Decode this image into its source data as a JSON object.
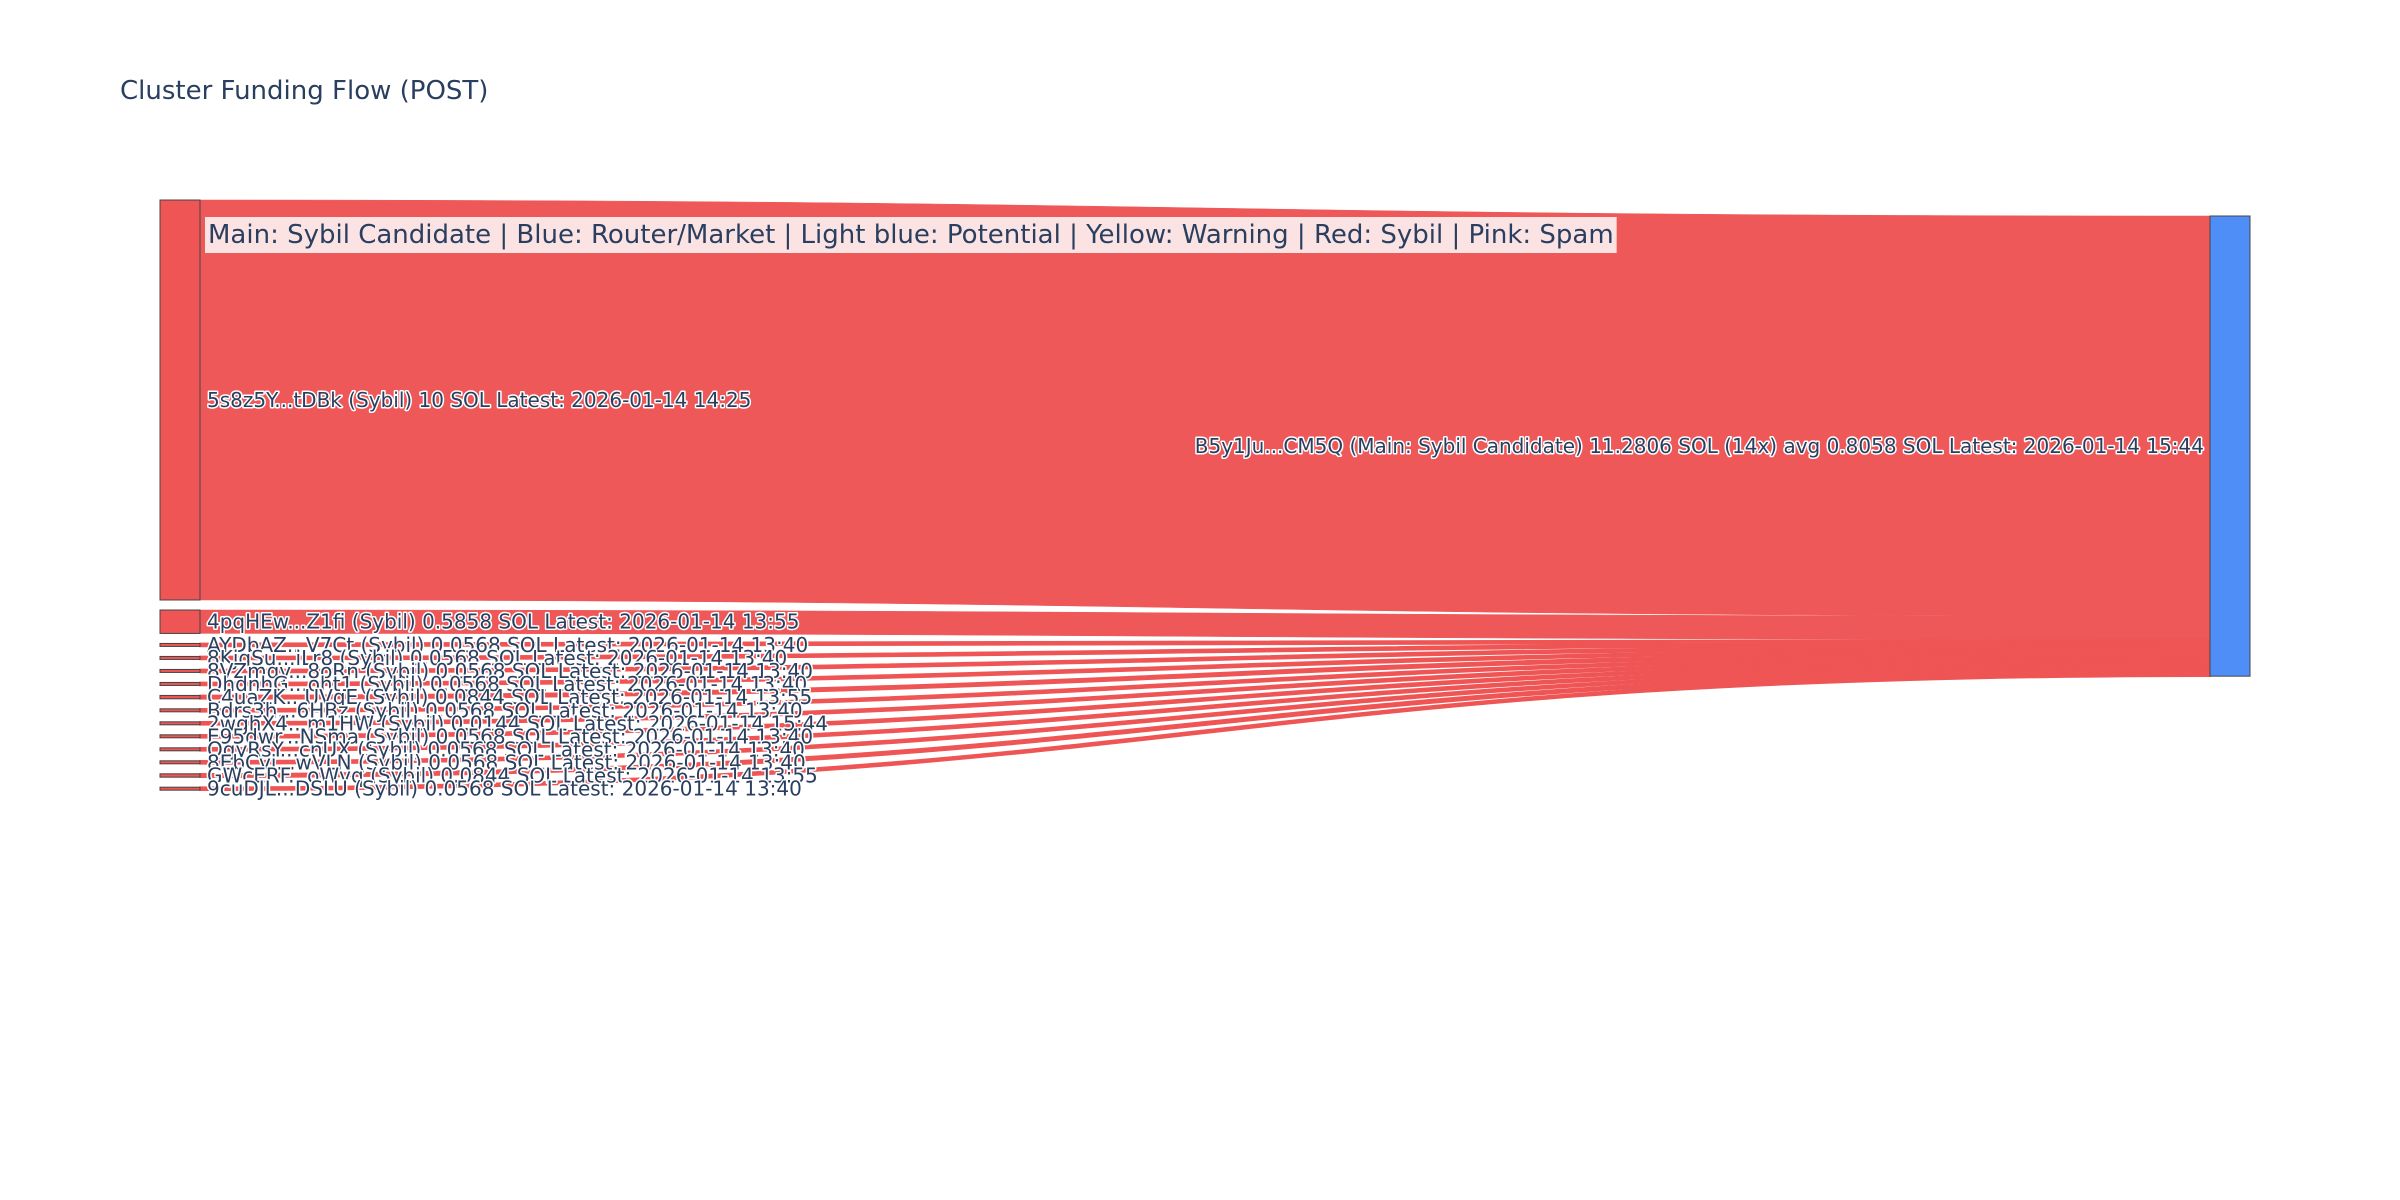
{
  "colors": {
    "sybil": "#EF5555",
    "main": "#4F8EF7",
    "background": "#ffffff",
    "text": "#2a3f5f",
    "legend_bg": "#fbe3e3",
    "node_border": "#444444"
  },
  "chart_data": {
    "type": "sankey",
    "title": "Cluster Funding Flow (POST)",
    "legend_note": "Main: Sybil Candidate  |  Blue: Router/Market | Light blue: Potential | Yellow: Warning | Red: Sybil | Pink: Spam",
    "target": {
      "label": "B5y1Ju...CM5Q (Main: Sybil Candidate) 11.2806 SOL (14x) avg 0.8058 SOL Latest: 2026-01-14 15:44",
      "value": 11.2806,
      "category": "main"
    },
    "sources": [
      {
        "label": "5s8z5Y...tDBk (Sybil) 10 SOL Latest: 2026-01-14 14:25",
        "value": 10,
        "category": "sybil"
      },
      {
        "label": "4pqHEw...Z1fi (Sybil) 0.5858 SOL Latest: 2026-01-14 13:55",
        "value": 0.5858,
        "category": "sybil"
      },
      {
        "label": "AYDbAZ...V7Ct (Sybil) 0.0568 SOL Latest: 2026-01-14 13:40",
        "value": 0.0568,
        "category": "sybil"
      },
      {
        "label": "8KjqSu...iLr8 (Sybil) 0.0568 SOL Latest: 2026-01-14 13:40",
        "value": 0.0568,
        "category": "sybil"
      },
      {
        "label": "8VZmqy...8oRn (Sybil) 0.0568 SOL Latest: 2026-01-14 13:40",
        "value": 0.0568,
        "category": "sybil"
      },
      {
        "label": "DhdnhG...oht1 (Sybil) 0.0568 SOL Latest: 2026-01-14 13:40",
        "value": 0.0568,
        "category": "sybil"
      },
      {
        "label": "C4uaZK...UVqE (Sybil) 0.0844 SOL Latest: 2026-01-14 13:55",
        "value": 0.0844,
        "category": "sybil"
      },
      {
        "label": "Bdrs3h...6HBz (Sybil) 0.0568 SOL Latest: 2026-01-14 13:40",
        "value": 0.0568,
        "category": "sybil"
      },
      {
        "label": "2wghX4...m1HW (Sybil) 0.0144 SOL Latest: 2026-01-14 15:44",
        "value": 0.0144,
        "category": "sybil"
      },
      {
        "label": "E95dwr...NSma (Sybil) 0.0568 SOL Latest: 2026-01-14 13:40",
        "value": 0.0568,
        "category": "sybil"
      },
      {
        "label": "QgyRsY...cnUX (Sybil) 0.0568 SOL Latest: 2026-01-14 13:40",
        "value": 0.0568,
        "category": "sybil"
      },
      {
        "label": "8EbCvi...wVLN (Sybil) 0.0568 SOL Latest: 2026-01-14 13:40",
        "value": 0.0568,
        "category": "sybil"
      },
      {
        "label": "GWcERF...oWvq (Sybil) 0.0844 SOL Latest: 2026-01-14 13:55",
        "value": 0.0844,
        "category": "sybil"
      },
      {
        "label": "9cuDJL...DSLU (Sybil) 0.0568 SOL Latest: 2026-01-14 13:40",
        "value": 0.0568,
        "category": "sybil"
      }
    ]
  }
}
